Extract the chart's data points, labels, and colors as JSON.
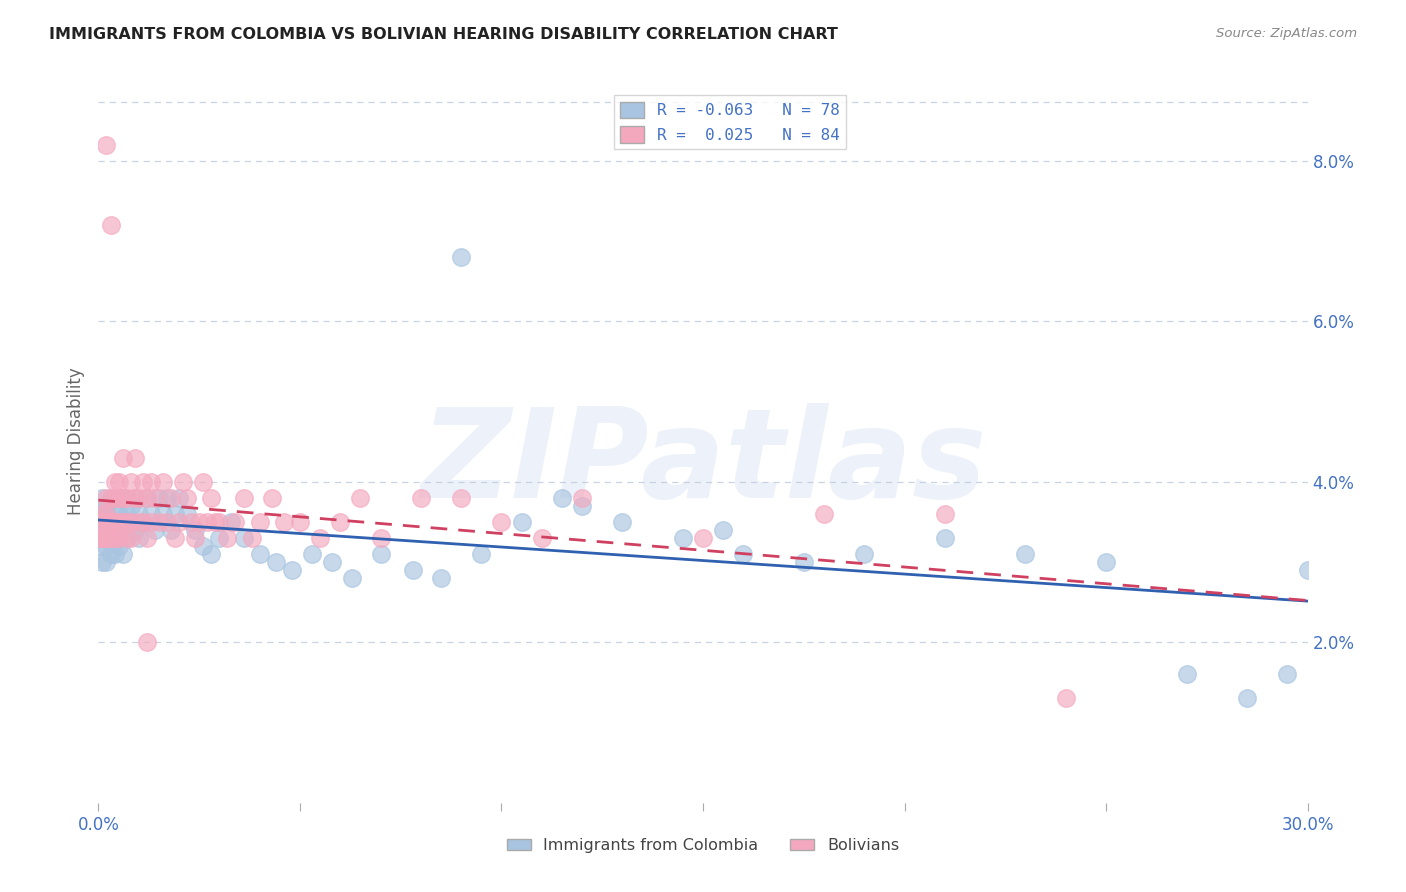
{
  "title": "IMMIGRANTS FROM COLOMBIA VS BOLIVIAN HEARING DISABILITY CORRELATION CHART",
  "source": "Source: ZipAtlas.com",
  "ylabel": "Hearing Disability",
  "x_min": 0.0,
  "x_max": 0.3,
  "y_min": 0.0,
  "y_max": 0.09,
  "right_yticks": [
    0.02,
    0.04,
    0.06,
    0.08
  ],
  "right_ytick_labels": [
    "2.0%",
    "4.0%",
    "6.0%",
    "8.0%"
  ],
  "bottom_xticks": [
    0.0,
    0.05,
    0.1,
    0.15,
    0.2,
    0.25,
    0.3
  ],
  "bottom_xtick_labels": [
    "0.0%",
    "",
    "",
    "",
    "",
    "",
    "30.0%"
  ],
  "series1_label": "Immigrants from Colombia",
  "series2_label": "Bolivians",
  "series1_color": "#a8c4e0",
  "series2_color": "#f4a8be",
  "series1_line_color": "#3060b0",
  "series2_line_color": "#d04060",
  "watermark_text": "ZIPatlas",
  "background_color": "#ffffff",
  "grid_color": "#c8d4e4",
  "title_color": "#222222",
  "axis_color": "#4472c4",
  "legend_R1": "-0.063",
  "legend_N1": "78",
  "legend_R2": " 0.025",
  "legend_N2": "84",
  "series1_x": [
    0.0,
    0.001,
    0.001,
    0.001,
    0.001,
    0.001,
    0.002,
    0.002,
    0.002,
    0.002,
    0.002,
    0.002,
    0.003,
    0.003,
    0.003,
    0.003,
    0.004,
    0.004,
    0.004,
    0.004,
    0.005,
    0.005,
    0.005,
    0.006,
    0.006,
    0.006,
    0.007,
    0.007,
    0.008,
    0.008,
    0.009,
    0.009,
    0.01,
    0.01,
    0.011,
    0.012,
    0.013,
    0.014,
    0.015,
    0.016,
    0.017,
    0.018,
    0.019,
    0.02,
    0.022,
    0.024,
    0.026,
    0.028,
    0.03,
    0.033,
    0.036,
    0.04,
    0.044,
    0.048,
    0.053,
    0.058,
    0.063,
    0.07,
    0.078,
    0.085,
    0.095,
    0.105,
    0.115,
    0.13,
    0.145,
    0.16,
    0.175,
    0.19,
    0.21,
    0.23,
    0.25,
    0.27,
    0.285,
    0.295,
    0.3,
    0.155,
    0.12,
    0.09
  ],
  "series1_y": [
    0.032,
    0.035,
    0.033,
    0.03,
    0.036,
    0.038,
    0.034,
    0.032,
    0.036,
    0.03,
    0.033,
    0.037,
    0.035,
    0.038,
    0.031,
    0.034,
    0.033,
    0.036,
    0.034,
    0.031,
    0.035,
    0.032,
    0.036,
    0.034,
    0.038,
    0.031,
    0.036,
    0.033,
    0.035,
    0.037,
    0.034,
    0.038,
    0.036,
    0.033,
    0.035,
    0.038,
    0.036,
    0.034,
    0.038,
    0.036,
    0.038,
    0.034,
    0.036,
    0.038,
    0.036,
    0.034,
    0.032,
    0.031,
    0.033,
    0.035,
    0.033,
    0.031,
    0.03,
    0.029,
    0.031,
    0.03,
    0.028,
    0.031,
    0.029,
    0.028,
    0.031,
    0.035,
    0.038,
    0.035,
    0.033,
    0.031,
    0.03,
    0.031,
    0.033,
    0.031,
    0.03,
    0.016,
    0.013,
    0.016,
    0.029,
    0.034,
    0.037,
    0.068
  ],
  "series2_x": [
    0.0,
    0.0,
    0.001,
    0.001,
    0.001,
    0.001,
    0.002,
    0.002,
    0.002,
    0.002,
    0.002,
    0.003,
    0.003,
    0.003,
    0.003,
    0.003,
    0.004,
    0.004,
    0.004,
    0.004,
    0.005,
    0.005,
    0.005,
    0.005,
    0.006,
    0.006,
    0.006,
    0.007,
    0.007,
    0.007,
    0.008,
    0.008,
    0.008,
    0.009,
    0.009,
    0.01,
    0.01,
    0.011,
    0.011,
    0.012,
    0.012,
    0.013,
    0.013,
    0.014,
    0.015,
    0.016,
    0.017,
    0.018,
    0.019,
    0.02,
    0.021,
    0.022,
    0.023,
    0.024,
    0.025,
    0.026,
    0.027,
    0.028,
    0.029,
    0.03,
    0.032,
    0.034,
    0.036,
    0.038,
    0.04,
    0.043,
    0.046,
    0.05,
    0.055,
    0.06,
    0.065,
    0.07,
    0.08,
    0.09,
    0.1,
    0.11,
    0.12,
    0.15,
    0.18,
    0.21,
    0.24,
    0.002,
    0.003,
    0.012
  ],
  "series2_y": [
    0.033,
    0.035,
    0.033,
    0.035,
    0.036,
    0.033,
    0.035,
    0.038,
    0.033,
    0.036,
    0.033,
    0.035,
    0.033,
    0.033,
    0.038,
    0.035,
    0.033,
    0.04,
    0.035,
    0.038,
    0.035,
    0.038,
    0.033,
    0.04,
    0.035,
    0.038,
    0.043,
    0.035,
    0.038,
    0.033,
    0.035,
    0.04,
    0.033,
    0.038,
    0.043,
    0.035,
    0.038,
    0.04,
    0.035,
    0.038,
    0.033,
    0.04,
    0.035,
    0.038,
    0.035,
    0.04,
    0.035,
    0.038,
    0.033,
    0.035,
    0.04,
    0.038,
    0.035,
    0.033,
    0.035,
    0.04,
    0.035,
    0.038,
    0.035,
    0.035,
    0.033,
    0.035,
    0.038,
    0.033,
    0.035,
    0.038,
    0.035,
    0.035,
    0.033,
    0.035,
    0.038,
    0.033,
    0.038,
    0.038,
    0.035,
    0.033,
    0.038,
    0.033,
    0.036,
    0.036,
    0.013,
    0.082,
    0.072,
    0.02
  ]
}
